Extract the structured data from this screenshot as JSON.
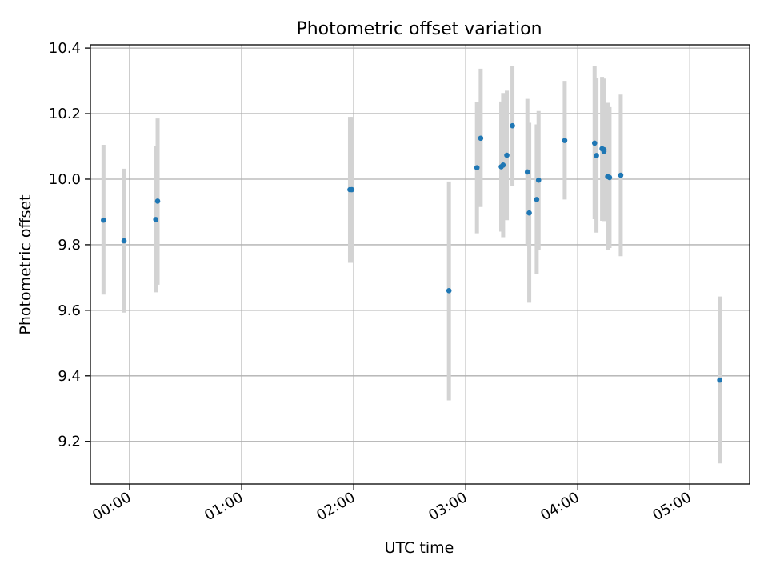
{
  "chart_data": {
    "type": "scatter",
    "title": "Photometric offset variation",
    "xlabel": "UTC time",
    "ylabel": "Photometric offset",
    "x_tick_labels": [
      "00:00",
      "01:00",
      "02:00",
      "03:00",
      "04:00",
      "05:00"
    ],
    "y_tick_labels": [
      "9.2",
      "9.4",
      "9.6",
      "9.8",
      "10.0",
      "10.2",
      "10.4"
    ],
    "xlim": [
      "23:39",
      "05:32"
    ],
    "ylim": [
      9.07,
      10.41
    ],
    "grid": true,
    "colors": {
      "point": "#1f77b4",
      "errorbar": "#d3d3d3",
      "grid": "#b0b0b0",
      "axes": "#000000"
    },
    "points": [
      {
        "x": "23:46",
        "y": 9.875,
        "low": 9.648,
        "high": 10.105
      },
      {
        "x": "23:57",
        "y": 9.812,
        "low": 9.593,
        "high": 10.032
      },
      {
        "x": "00:14",
        "y": 9.877,
        "low": 9.655,
        "high": 10.1
      },
      {
        "x": "00:15",
        "y": 9.933,
        "low": 9.678,
        "high": 10.185
      },
      {
        "x": "01:58",
        "y": 9.968,
        "low": 9.745,
        "high": 10.19
      },
      {
        "x": "01:59",
        "y": 9.968,
        "low": 9.745,
        "high": 10.19
      },
      {
        "x": "02:51",
        "y": 9.66,
        "low": 9.325,
        "high": 9.993
      },
      {
        "x": "03:06",
        "y": 10.035,
        "low": 9.835,
        "high": 10.235
      },
      {
        "x": "03:08",
        "y": 10.125,
        "low": 9.915,
        "high": 10.337
      },
      {
        "x": "03:19",
        "y": 10.038,
        "low": 9.84,
        "high": 10.237
      },
      {
        "x": "03:20",
        "y": 10.043,
        "low": 9.823,
        "high": 10.263
      },
      {
        "x": "03:22",
        "y": 10.073,
        "low": 9.875,
        "high": 10.27
      },
      {
        "x": "03:25",
        "y": 10.163,
        "low": 9.98,
        "high": 10.345
      },
      {
        "x": "03:33",
        "y": 10.022,
        "low": 9.8,
        "high": 10.245
      },
      {
        "x": "03:34",
        "y": 9.897,
        "low": 9.623,
        "high": 10.172
      },
      {
        "x": "03:38",
        "y": 9.938,
        "low": 9.71,
        "high": 10.167
      },
      {
        "x": "03:39",
        "y": 9.997,
        "low": 9.785,
        "high": 10.208
      },
      {
        "x": "03:53",
        "y": 10.118,
        "low": 9.938,
        "high": 10.3
      },
      {
        "x": "04:09",
        "y": 10.11,
        "low": 9.878,
        "high": 10.345
      },
      {
        "x": "04:10",
        "y": 10.072,
        "low": 9.837,
        "high": 10.308
      },
      {
        "x": "04:13",
        "y": 10.093,
        "low": 9.873,
        "high": 10.312
      },
      {
        "x": "04:14",
        "y": 10.085,
        "low": 9.873,
        "high": 10.297
      },
      {
        "x": "04:14",
        "y": 10.09,
        "low": 9.872,
        "high": 10.307
      },
      {
        "x": "04:16",
        "y": 10.008,
        "low": 9.783,
        "high": 10.233
      },
      {
        "x": "04:17",
        "y": 10.005,
        "low": 9.79,
        "high": 10.22
      },
      {
        "x": "04:23",
        "y": 10.012,
        "low": 9.765,
        "high": 10.258
      },
      {
        "x": "05:16",
        "y": 9.387,
        "low": 9.133,
        "high": 9.642
      }
    ]
  }
}
